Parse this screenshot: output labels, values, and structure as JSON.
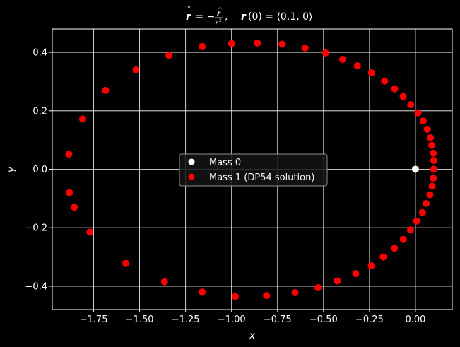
{
  "chart_data": {
    "type": "scatter",
    "title_parts": {
      "lhs": "r",
      "mid": " = −",
      "frac_num": "r",
      "frac_den": "r",
      "frac_den_exp": "2",
      "sep": ",",
      "ic_lhs": "r",
      "ic_arg": "(0) = ⟨0.1, 0⟩"
    },
    "xlabel": "x",
    "ylabel": "y",
    "xlim": [
      -1.975,
      0.2
    ],
    "ylim": [
      -0.48,
      0.48
    ],
    "xticks": [
      -1.75,
      -1.5,
      -1.25,
      -1.0,
      -0.75,
      -0.5,
      -0.25,
      0.0
    ],
    "xtick_labels": [
      "−1.75",
      "−1.50",
      "−1.25",
      "−1.00",
      "−0.75",
      "−0.50",
      "−0.25",
      "0.00"
    ],
    "yticks": [
      -0.4,
      -0.2,
      0.0,
      0.2,
      0.4
    ],
    "ytick_labels": [
      "−0.4",
      "−0.2",
      "0.0",
      "0.2",
      "0.4"
    ],
    "grid": true,
    "legend": "center",
    "colors": {
      "background": "#000000",
      "axes": "#ffffff",
      "mass0": "#ffffff",
      "mass1": "#ff0000"
    },
    "series": [
      {
        "name": "Mass 0",
        "points": [
          [
            0.0,
            0.0
          ]
        ]
      },
      {
        "name": "Mass 1 (DP54 solution)",
        "points": [
          [
            0.1,
            0.0
          ],
          [
            0.1,
            0.03
          ],
          [
            0.097,
            0.055
          ],
          [
            0.089,
            0.082
          ],
          [
            0.081,
            0.108
          ],
          [
            0.064,
            0.137
          ],
          [
            0.042,
            0.165
          ],
          [
            0.014,
            0.193
          ],
          [
            -0.026,
            0.221
          ],
          [
            -0.067,
            0.249
          ],
          [
            -0.113,
            0.275
          ],
          [
            -0.168,
            0.302
          ],
          [
            -0.239,
            0.33
          ],
          [
            -0.316,
            0.354
          ],
          [
            -0.396,
            0.376
          ],
          [
            -0.489,
            0.398
          ],
          [
            -0.6,
            0.415
          ],
          [
            -0.725,
            0.428
          ],
          [
            -0.86,
            0.432
          ],
          [
            -1.0,
            0.43
          ],
          [
            -1.16,
            0.42
          ],
          [
            -1.34,
            0.39
          ],
          [
            -1.52,
            0.34
          ],
          [
            -1.685,
            0.27
          ],
          [
            -1.81,
            0.172
          ],
          [
            -1.885,
            0.052
          ],
          [
            -1.882,
            -0.08
          ],
          [
            -1.855,
            -0.13
          ],
          [
            -1.77,
            -0.215
          ],
          [
            -1.575,
            -0.322
          ],
          [
            -1.365,
            -0.385
          ],
          [
            -1.16,
            -0.42
          ],
          [
            -0.98,
            -0.435
          ],
          [
            -0.81,
            -0.432
          ],
          [
            -0.655,
            -0.422
          ],
          [
            -0.53,
            -0.405
          ],
          [
            -0.425,
            -0.382
          ],
          [
            -0.325,
            -0.357
          ],
          [
            -0.24,
            -0.33
          ],
          [
            -0.175,
            -0.3
          ],
          [
            -0.114,
            -0.27
          ],
          [
            -0.066,
            -0.24
          ],
          [
            -0.027,
            -0.207
          ],
          [
            0.007,
            -0.177
          ],
          [
            0.038,
            -0.148
          ],
          [
            0.058,
            -0.117
          ],
          [
            0.079,
            -0.087
          ],
          [
            0.091,
            -0.058
          ],
          [
            0.097,
            -0.03
          ]
        ]
      }
    ]
  }
}
